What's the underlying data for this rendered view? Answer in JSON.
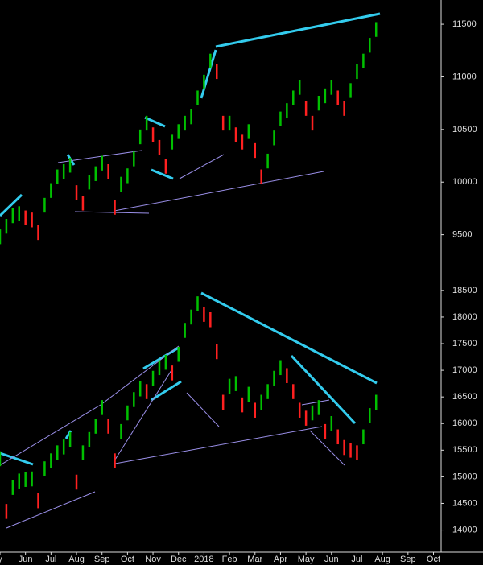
{
  "chart_data": [
    {
      "type": "range-bar",
      "up_color": "#00c000",
      "down_color": "#ff2020",
      "x": [
        0,
        0.25,
        0.5,
        0.75,
        1,
        1.25,
        1.5,
        1.75,
        2,
        2.25,
        2.5,
        2.75,
        3,
        3.25,
        3.5,
        3.75,
        4,
        4.25,
        4.5,
        4.75,
        5,
        5.25,
        5.5,
        5.75,
        6,
        6.25,
        6.5,
        6.75,
        7,
        7.25,
        7.5,
        7.75,
        8,
        8.25,
        8.5,
        8.75,
        9,
        9.25,
        9.5,
        9.75,
        10,
        10.25,
        10.5,
        10.75,
        11,
        11.25,
        11.5,
        11.75,
        12,
        12.25,
        12.5,
        12.75,
        13,
        13.25,
        13.5,
        13.75,
        14,
        14.25,
        14.5,
        14.75
      ],
      "series": [
        {
          "name": "low",
          "values": [
            9410,
            9510,
            9610,
            9630,
            9590,
            9570,
            9450,
            9710,
            9850,
            9980,
            10030,
            10090,
            9830,
            9730,
            9930,
            10010,
            10110,
            10030,
            9690,
            9910,
            9990,
            10150,
            10360,
            10490,
            10380,
            10260,
            10080,
            10310,
            10410,
            10490,
            10550,
            10730,
            10880,
            11080,
            10980,
            10490,
            10490,
            10380,
            10310,
            10410,
            10230,
            9980,
            10130,
            10350,
            10530,
            10610,
            10730,
            10830,
            10630,
            10490,
            10680,
            10750,
            10830,
            10730,
            10630,
            10800,
            10980,
            11080,
            11230,
            11380
          ]
        },
        {
          "name": "high",
          "values": [
            9550,
            9650,
            9750,
            9770,
            9730,
            9710,
            9590,
            9850,
            9990,
            10120,
            10170,
            10230,
            9970,
            9870,
            10070,
            10150,
            10250,
            10170,
            9830,
            10050,
            10130,
            10290,
            10500,
            10630,
            10520,
            10400,
            10220,
            10450,
            10550,
            10630,
            10690,
            10870,
            11020,
            11220,
            11120,
            10630,
            10630,
            10520,
            10450,
            10550,
            10370,
            10120,
            10270,
            10490,
            10670,
            10750,
            10870,
            10970,
            10770,
            10630,
            10820,
            10890,
            10970,
            10870,
            10770,
            10940,
            11120,
            11220,
            11370,
            11520
          ]
        }
      ],
      "xlim": [
        0,
        17.3
      ],
      "ylim": [
        9130,
        11730
      ],
      "yticks": [
        9500,
        10000,
        10500,
        11000,
        11500
      ]
    },
    {
      "type": "range-bar",
      "up_color": "#00c000",
      "down_color": "#ff2020",
      "x": [
        0,
        0.25,
        0.5,
        0.75,
        1,
        1.25,
        1.5,
        1.75,
        2,
        2.25,
        2.5,
        2.75,
        3,
        3.25,
        3.5,
        3.75,
        4,
        4.25,
        4.5,
        4.75,
        5,
        5.25,
        5.5,
        5.75,
        6,
        6.25,
        6.5,
        6.75,
        7,
        7.25,
        7.5,
        7.75,
        8,
        8.25,
        8.5,
        8.75,
        9,
        9.25,
        9.5,
        9.75,
        10,
        10.25,
        10.5,
        10.75,
        11,
        11.25,
        11.5,
        11.75,
        12,
        12.25,
        12.5,
        12.75,
        13,
        13.25,
        13.5,
        13.75,
        14,
        14.25,
        14.5,
        14.75
      ],
      "series": [
        {
          "name": "low",
          "values": [
            15200,
            14210,
            14660,
            14780,
            14810,
            14820,
            14410,
            15010,
            15160,
            15310,
            15420,
            15560,
            14760,
            15310,
            15560,
            15810,
            16160,
            15810,
            15160,
            15710,
            16060,
            16310,
            16510,
            16460,
            16710,
            16910,
            17010,
            16810,
            17160,
            17610,
            17860,
            18110,
            17910,
            17810,
            17210,
            16260,
            16560,
            16610,
            16210,
            16410,
            16110,
            16260,
            16460,
            16710,
            16910,
            16760,
            16460,
            16110,
            15960,
            16060,
            16160,
            15710,
            15860,
            15610,
            15410,
            15360,
            15310,
            15610,
            16010,
            16260
          ]
        },
        {
          "name": "high",
          "values": [
            15480,
            14490,
            14940,
            15060,
            15090,
            15100,
            14690,
            15290,
            15440,
            15590,
            15700,
            15840,
            15040,
            15590,
            15840,
            16090,
            16440,
            16090,
            15440,
            15990,
            16340,
            16590,
            16790,
            16740,
            16990,
            17190,
            17290,
            17090,
            17440,
            17890,
            18140,
            18390,
            18190,
            18090,
            17490,
            16540,
            16840,
            16890,
            16490,
            16690,
            16390,
            16540,
            16740,
            16990,
            17190,
            17040,
            16740,
            16390,
            16240,
            16340,
            16440,
            15990,
            16140,
            15890,
            15690,
            15640,
            15590,
            15890,
            16290,
            16540
          ]
        }
      ],
      "xlim": [
        0,
        17.3
      ],
      "ylim": [
        13600,
        18740
      ],
      "yticks": [
        14000,
        14500,
        15000,
        15500,
        16000,
        16500,
        17000,
        17500,
        18000,
        18500
      ],
      "xticks": [
        {
          "value": 0,
          "label": "y"
        },
        {
          "value": 1,
          "label": "Jun"
        },
        {
          "value": 2,
          "label": "Jul"
        },
        {
          "value": 3,
          "label": "Aug"
        },
        {
          "value": 4,
          "label": "Sep"
        },
        {
          "value": 5,
          "label": "Oct"
        },
        {
          "value": 6,
          "label": "Nov"
        },
        {
          "value": 7,
          "label": "Dec"
        },
        {
          "value": 8,
          "label": "2018"
        },
        {
          "value": 9,
          "label": "Feb"
        },
        {
          "value": 10,
          "label": "Mar"
        },
        {
          "value": 11,
          "label": "Apr"
        },
        {
          "value": 12,
          "label": "May"
        },
        {
          "value": 13,
          "label": "Jun"
        },
        {
          "value": 14,
          "label": "Jul"
        },
        {
          "value": 15,
          "label": "Aug"
        },
        {
          "value": 16,
          "label": "Sep"
        },
        {
          "value": 17,
          "label": "Oct"
        }
      ]
    }
  ]
}
